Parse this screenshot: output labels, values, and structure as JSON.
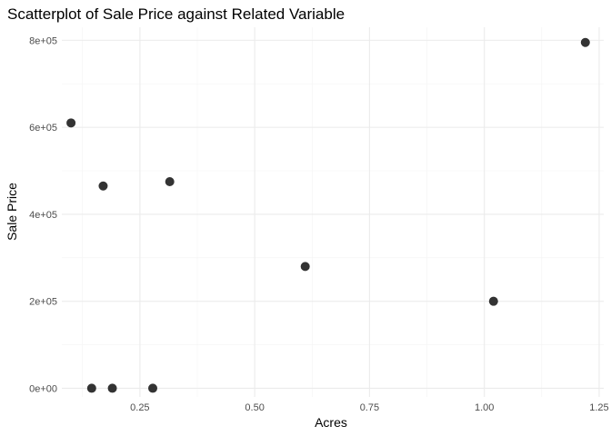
{
  "chart_data": {
    "type": "scatter",
    "title": "Scatterplot of Sale Price against Related Variable",
    "xlabel": "Acres",
    "ylabel": "Sale Price",
    "xlim": [
      0.08,
      1.26
    ],
    "ylim": [
      -20000,
      830000
    ],
    "x_ticks": [
      0.25,
      0.5,
      0.75,
      1.0,
      1.25
    ],
    "x_tick_labels": [
      "0.25",
      "0.50",
      "0.75",
      "1.00",
      "1.25"
    ],
    "y_ticks": [
      0,
      200000,
      400000,
      600000,
      800000
    ],
    "y_tick_labels": [
      "0e+00",
      "2e+05",
      "4e+05",
      "6e+05",
      "8e+05"
    ],
    "grid": true,
    "legend": "none",
    "point_color": "#333333",
    "points": [
      {
        "x": 0.1,
        "y": 610000
      },
      {
        "x": 0.17,
        "y": 465000
      },
      {
        "x": 0.315,
        "y": 475000
      },
      {
        "x": 0.61,
        "y": 280000
      },
      {
        "x": 1.02,
        "y": 200000
      },
      {
        "x": 1.22,
        "y": 795000
      },
      {
        "x": 0.145,
        "y": 0
      },
      {
        "x": 0.19,
        "y": 0
      },
      {
        "x": 0.278,
        "y": 0
      }
    ]
  }
}
